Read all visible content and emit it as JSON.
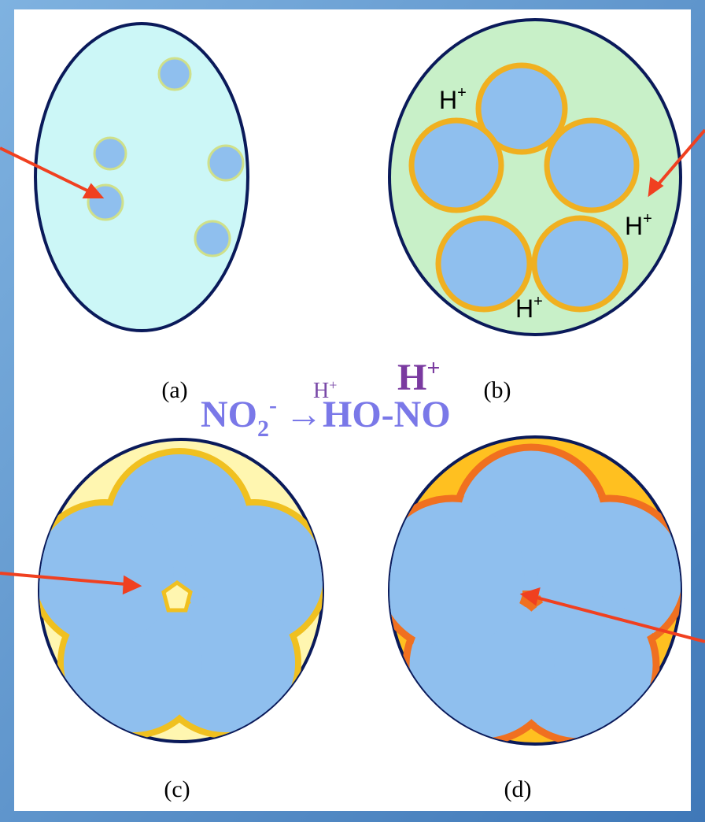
{
  "panels": [
    {
      "label": "(a)"
    },
    {
      "label": "(b)"
    },
    {
      "label": "(c)"
    },
    {
      "label": "(d)"
    }
  ],
  "ion_labels": [
    {
      "base": "H",
      "sup": "+"
    },
    {
      "base": "H",
      "sup": "+"
    },
    {
      "base": "H",
      "sup": "+"
    }
  ],
  "equation": {
    "reactant": "NO",
    "reactant_sub": "2",
    "reactant_sup": "-",
    "arrow_label": {
      "base": "H",
      "sup": "+"
    },
    "product": "→HO-NO",
    "catalyst": {
      "base": "H",
      "sup": "+"
    }
  }
}
